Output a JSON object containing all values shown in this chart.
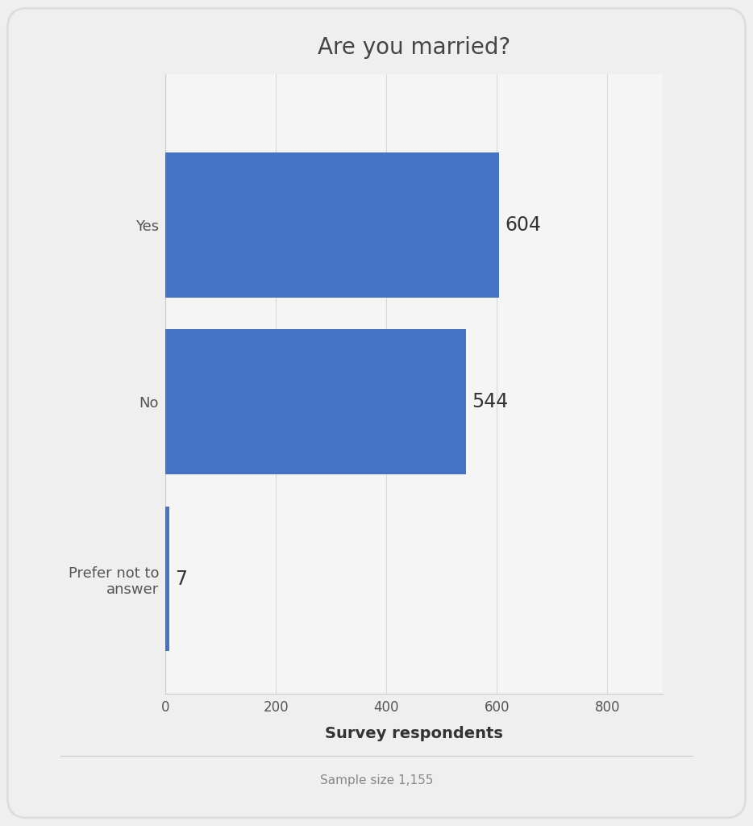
{
  "title": "Are you married?",
  "categories": [
    "Yes",
    "No",
    "Prefer not to\nanswer"
  ],
  "values": [
    604,
    544,
    7
  ],
  "bar_color": "#4472C4",
  "xlabel": "Survey respondents",
  "xlim": [
    0,
    900
  ],
  "xticks": [
    0,
    200,
    400,
    600,
    800
  ],
  "background_color": "#efefef",
  "plot_bg_color": "#f5f5f5",
  "title_fontsize": 20,
  "label_fontsize": 13,
  "tick_fontsize": 12,
  "value_fontsize": 17,
  "footer_text": "Sample size 1,155",
  "footer_fontsize": 11,
  "grid_color": "#d8d8d8",
  "spine_color": "#cccccc",
  "text_color": "#555555",
  "title_color": "#444444"
}
